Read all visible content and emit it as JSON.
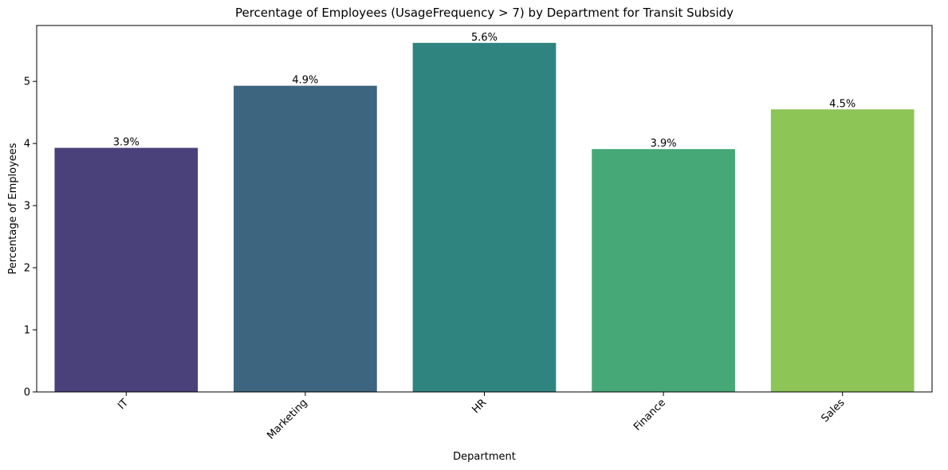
{
  "chart_data": {
    "type": "bar",
    "title": "Percentage of Employees (UsageFrequency > 7) by Department for Transit Subsidy",
    "xlabel": "Department",
    "ylabel": "Percentage of Employees",
    "categories": [
      "IT",
      "Marketing",
      "HR",
      "Finance",
      "Sales"
    ],
    "values": [
      3.93,
      4.93,
      5.62,
      3.91,
      4.55
    ],
    "data_labels": [
      "3.9%",
      "4.9%",
      "5.6%",
      "3.9%",
      "4.5%"
    ],
    "colors": [
      "#4a417a",
      "#3e6580",
      "#2f8480",
      "#47a877",
      "#8dc557"
    ],
    "ylim": [
      0,
      5.9
    ],
    "yticks": [
      0,
      1,
      2,
      3,
      4,
      5
    ],
    "ytick_labels": [
      "0",
      "1",
      "2",
      "3",
      "4",
      "5"
    ],
    "x_tick_rotation": "45°",
    "grid": false,
    "legend": "none"
  }
}
